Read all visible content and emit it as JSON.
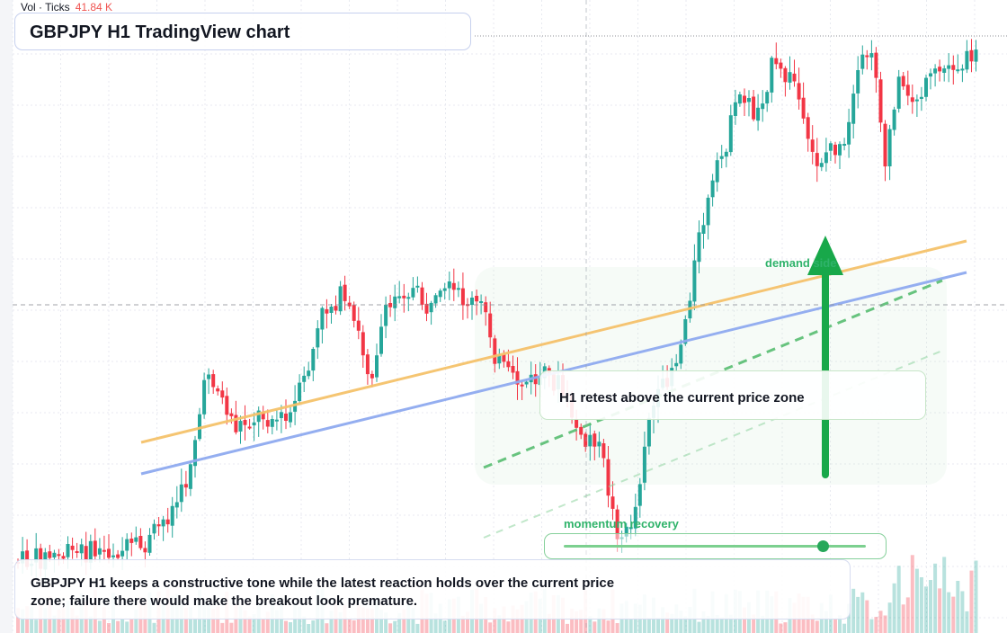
{
  "volume_legend": {
    "label": "Vol · Ticks",
    "value": "41.84 K"
  },
  "title": "GBPJPY H1 TradingView chart",
  "annotations": {
    "retest_label": "H1 retest above the current price zone",
    "demand_label": "demand side",
    "momentum_label": "momentum recovery",
    "commentary": "GBPJPY H1 keeps a constructive tone while the latest reaction holds over the current price zone; failure there would make the breakout look premature."
  },
  "indicators": {
    "momentum_recovery_level": 0.86
  },
  "colors": {
    "up": "#26a69a",
    "down": "#f23645",
    "trendline_orange": "#f5c26b",
    "trendline_blue": "#8faaf0",
    "signal_green": "#18a84a",
    "grid": "#e8eaf0"
  },
  "chart_data": {
    "type": "candlestick",
    "symbol": "GBPJPY",
    "timeframe": "H1",
    "price_axis": "hidden",
    "time_axis": "hidden",
    "grid": true,
    "volume_pane": true,
    "volume_label": "Vol · Ticks",
    "last_volume": "41.84 K"
  }
}
